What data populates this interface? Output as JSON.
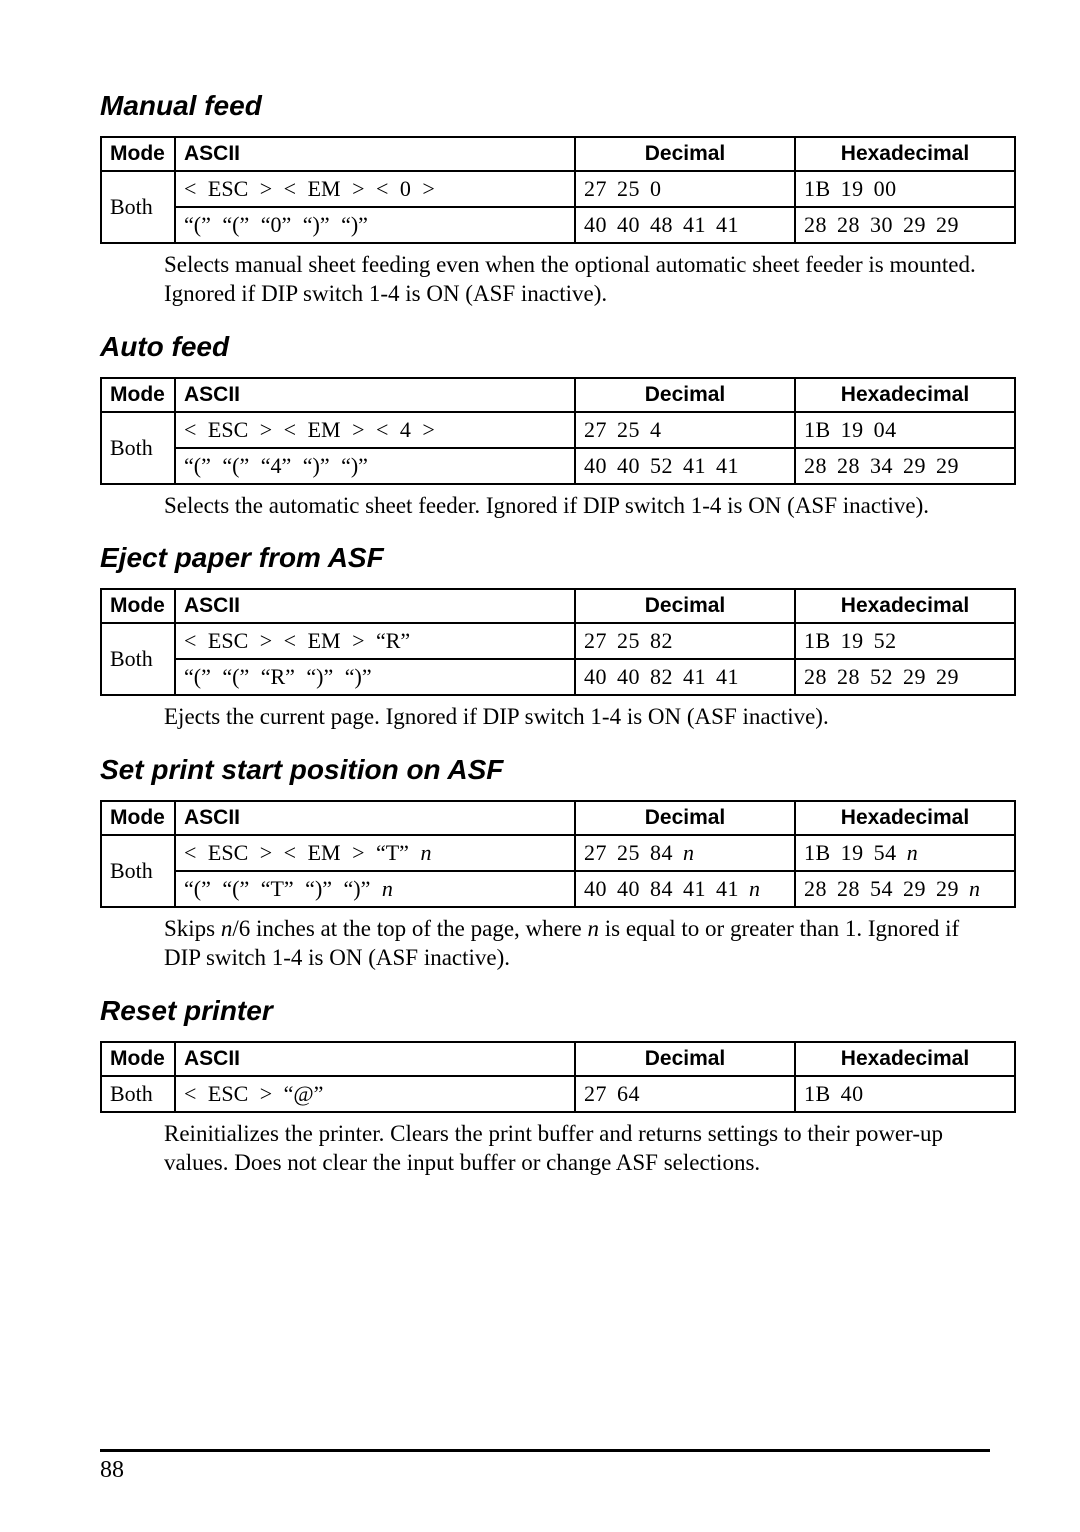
{
  "pageNumber": "88",
  "sections": [
    {
      "title": "Manual feed",
      "headers": {
        "mode": "Mode",
        "ascii": "ASCII",
        "decimal": "Decimal",
        "hex": "Hexadecimal"
      },
      "mode": "Both",
      "rows": [
        {
          "ascii": "< ESC >   < EM >  < 0 >",
          "decimal": "27   25    0",
          "hex": "1B   19   00"
        },
        {
          "ascii": "“(”      “(”     “0”     “)”    “)”",
          "decimal": "40   40   48   41  41",
          "hex": "28   28   30   29  29"
        }
      ],
      "desc": "Selects manual sheet feeding even when the optional automatic sheet feeder is mounted. Ignored if DIP switch 1-4 is ON (ASF inactive)."
    },
    {
      "title": "Auto feed",
      "headers": {
        "mode": "Mode",
        "ascii": "ASCII",
        "decimal": "Decimal",
        "hex": "Hexadecimal"
      },
      "mode": "Both",
      "rows": [
        {
          "ascii": "< ESC >   < EM >  < 4 >",
          "decimal": "27   25    4",
          "hex": "1B   19   04"
        },
        {
          "ascii": "“(”      “(”     “4”     “)”    “)”",
          "decimal": "40   40   52   41  41",
          "hex": "28   28   34   29  29"
        }
      ],
      "desc": "Selects the automatic sheet feeder. Ignored if DIP switch 1-4 is ON (ASF inactive)."
    },
    {
      "title": "Eject paper from ASF",
      "headers": {
        "mode": "Mode",
        "ascii": "ASCII",
        "decimal": "Decimal",
        "hex": "Hexadecimal"
      },
      "mode": "Both",
      "rows": [
        {
          "ascii": "< ESC >   < EM >  “R”",
          "decimal": "27   25   82",
          "hex": "1B   19   52"
        },
        {
          "ascii": "“(”      “(”     “R”     “)”    “)”",
          "decimal": "40   40   82   41  41",
          "hex": "28   28   52   29  29"
        }
      ],
      "desc": "Ejects the current page. Ignored if DIP switch 1-4 is ON (ASF inactive)."
    },
    {
      "title": "Set print start position on ASF",
      "headers": {
        "mode": "Mode",
        "ascii": "ASCII",
        "decimal": "Decimal",
        "hex": "Hexadecimal"
      },
      "mode": "Both",
      "rows": [
        {
          "ascii": "< ESC >   < EM >  “T”    n",
          "decimal": "27  25  84   n",
          "hex": "1B  19  54   n"
        },
        {
          "ascii": "“(”    “(”    “T”    “)”    “)”     n",
          "decimal": "40 40 84 41 41   n",
          "hex": "28 28 54 29 29   n"
        }
      ],
      "descHtml": "Skips <i>n</i>/6 inches at the top of the page, where <i>n</i> is equal to or greater than 1. Ignored if DIP switch 1-4 is ON (ASF inactive)."
    },
    {
      "title": "Reset printer",
      "headers": {
        "mode": "Mode",
        "ascii": "ASCII",
        "decimal": "Decimal",
        "hex": "Hexadecimal"
      },
      "mode": "Both",
      "singleRow": {
        "ascii": "< ESC >      “@”",
        "decimal": "27    64",
        "hex": "1B    40"
      },
      "desc": "Reinitializes the printer. Clears the print buffer and returns settings to their power-up values. Does not clear the input buffer or change ASF selections."
    }
  ]
}
